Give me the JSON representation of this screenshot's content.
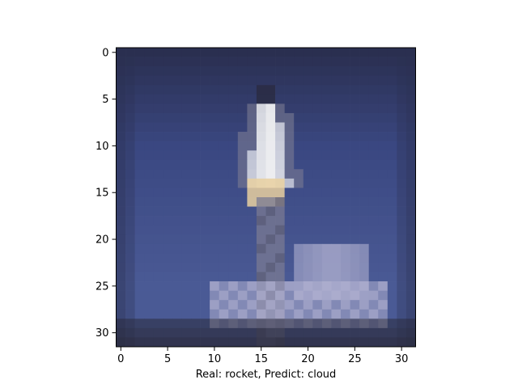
{
  "chart_data": {
    "type": "heatmap",
    "title": "",
    "xlabel": "Real: rocket, Predict: cloud",
    "ylabel": "",
    "image_size": [
      32,
      32
    ],
    "xlim": [
      -0.5,
      31.5
    ],
    "ylim": [
      31.5,
      -0.5
    ],
    "x_ticks": [
      0,
      5,
      10,
      15,
      20,
      25,
      30
    ],
    "y_ticks": [
      0,
      5,
      10,
      15,
      20,
      25,
      30
    ],
    "x_tick_labels": [
      "0",
      "5",
      "10",
      "15",
      "20",
      "25",
      "30"
    ],
    "y_tick_labels": [
      "0",
      "5",
      "10",
      "15",
      "20",
      "25",
      "30"
    ],
    "grid": false,
    "legend": "none",
    "image_description": "low-resolution photo of a rocket on a launch pad against a blue-grey sky",
    "colors": {
      "sky_top": "#2a2f50",
      "sky_mid": "#3a4781",
      "sky_low": "#4a5a95",
      "rocket_body": "#7a7a92",
      "rocket_highlight": "#f5f5f5",
      "flame_warm": "#e8d0a0",
      "smoke": "#b0b0d0",
      "ground": "#2a2a3c"
    }
  }
}
